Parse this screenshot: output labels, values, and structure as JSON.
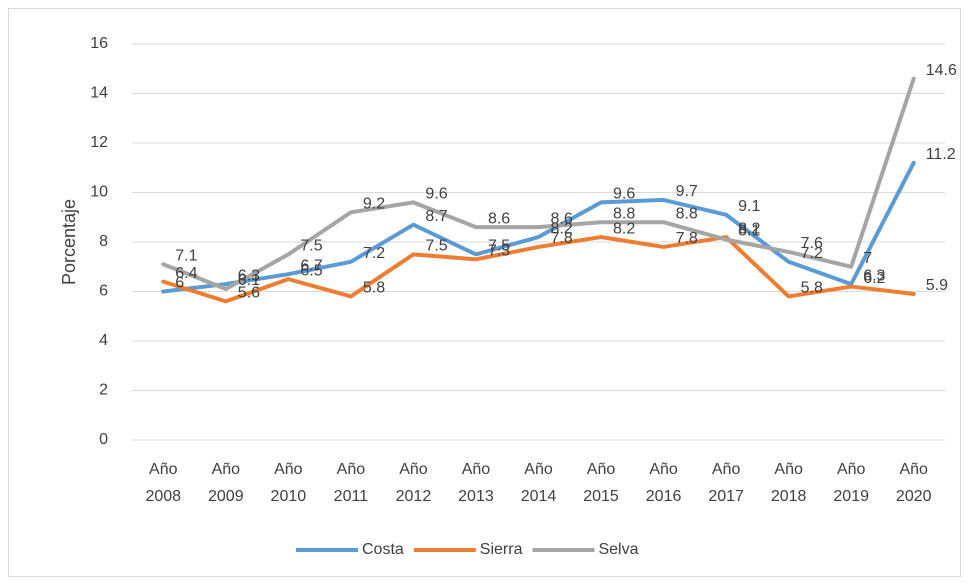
{
  "chart_data": {
    "type": "line",
    "y_label": "Porcentaje",
    "categories": [
      "Año 2008",
      "Año 2009",
      "Año 2010",
      "Año 2011",
      "Año 2012",
      "Año 2013",
      "Año 2014",
      "Año 2015",
      "Año 2016",
      "Año 2017",
      "Año 2018",
      "Año 2019",
      "Año 2020"
    ],
    "series": [
      {
        "name": "Costa",
        "color": "#5b9bd5",
        "values": [
          6.0,
          6.3,
          6.7,
          7.2,
          8.7,
          7.5,
          8.2,
          9.6,
          9.7,
          9.1,
          7.2,
          6.3,
          11.2
        ]
      },
      {
        "name": "Sierra",
        "color": "#ed7d31",
        "values": [
          6.4,
          5.6,
          6.5,
          5.8,
          7.5,
          7.3,
          7.8,
          8.2,
          7.8,
          8.2,
          5.8,
          6.2,
          5.9
        ]
      },
      {
        "name": "Selva",
        "color": "#a5a5a5",
        "values": [
          7.1,
          6.1,
          7.5,
          9.2,
          9.6,
          8.6,
          8.6,
          8.8,
          8.8,
          8.1,
          7.6,
          7,
          14.6
        ]
      }
    ],
    "ylim": [
      0,
      16
    ],
    "yticks": [
      0,
      2,
      4,
      6,
      8,
      10,
      12,
      14,
      16
    ],
    "grid": true,
    "legend": "bottom",
    "data_labels": true
  }
}
